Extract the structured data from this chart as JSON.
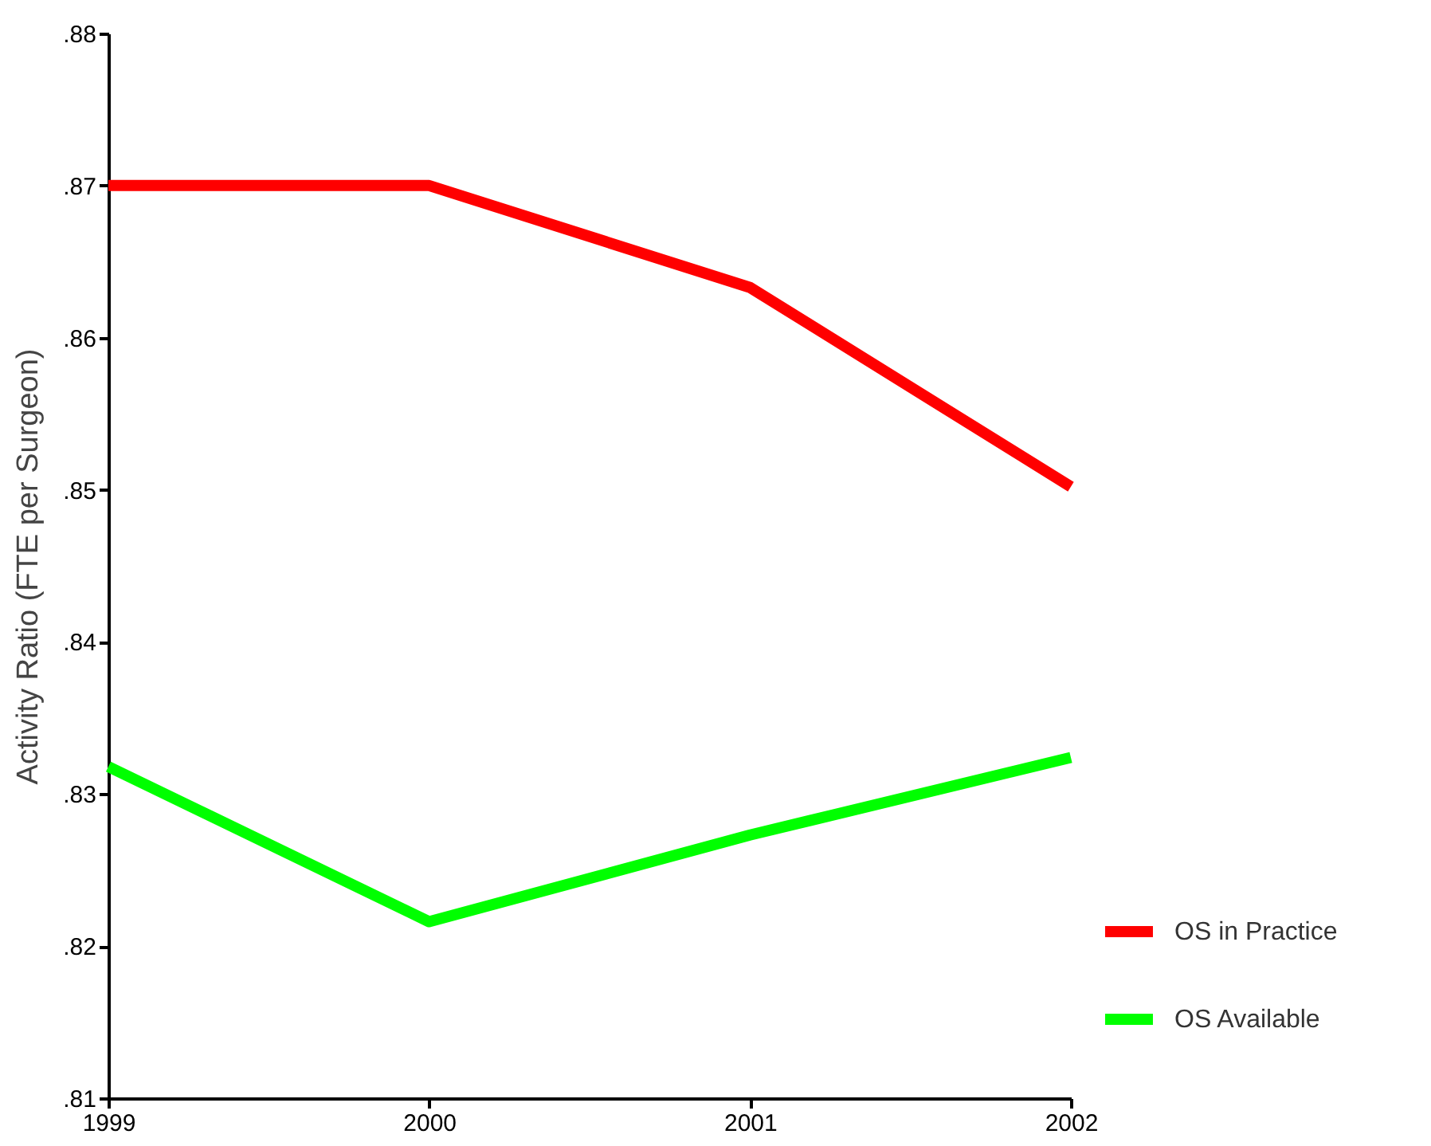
{
  "chart_data": {
    "type": "line",
    "ylabel": "Activity Ratio (FTE per Surgeon)",
    "x": [
      1999,
      2000,
      2001,
      2002
    ],
    "series": [
      {
        "name": "OS in Practice",
        "color": "#ff0000",
        "values": [
          0.87,
          0.87,
          0.8633,
          0.8502
        ]
      },
      {
        "name": "OS Available",
        "color": "#00ff00",
        "values": [
          0.8318,
          0.8216,
          0.8273,
          0.8324
        ]
      }
    ],
    "xlim": [
      1999,
      2002
    ],
    "xticks": [
      1999,
      2000,
      2001,
      2002
    ],
    "ylim": [
      0.81,
      0.88
    ],
    "yticks": [
      {
        "value": 0.81,
        "label": ".81"
      },
      {
        "value": 0.82,
        "label": ".82"
      },
      {
        "value": 0.83,
        "label": ".83"
      },
      {
        "value": 0.84,
        "label": ".84"
      },
      {
        "value": 0.85,
        "label": ".85"
      },
      {
        "value": 0.86,
        "label": ".86"
      },
      {
        "value": 0.87,
        "label": ".87"
      },
      {
        "value": 0.88,
        "label": ".88"
      }
    ],
    "grid": false,
    "legend": "bottom right",
    "marker": "none",
    "line_style": "solid"
  }
}
